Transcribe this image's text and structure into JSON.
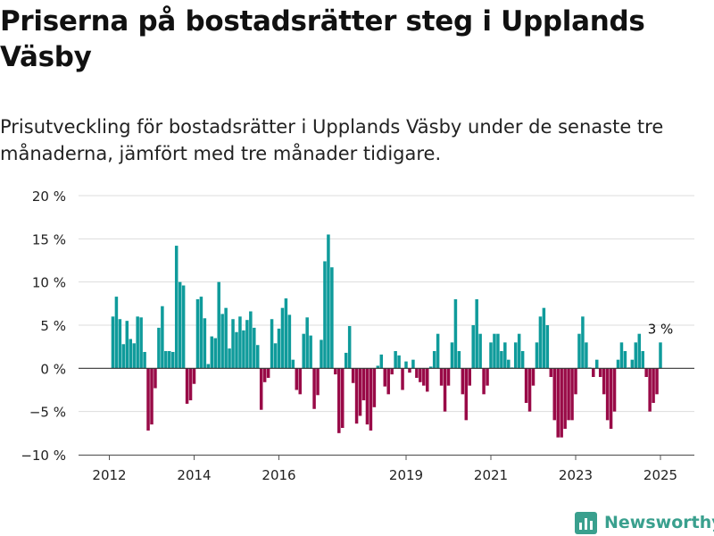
{
  "title": "Priserna på bostadsrätter steg i Upplands Väsby",
  "subtitle": "Prisutveckling för bostadsrätter i Upplands Väsby under de senaste tre månaderna, jämfört med tre månader tidigare.",
  "brand": {
    "name": "Newsworthy",
    "icon": "bar-chart-logo-icon"
  },
  "colors": {
    "positive": "#0f9b9b",
    "negative": "#990a47",
    "grid": "#dddddd",
    "zero_line": "#333333",
    "text": "#222222"
  },
  "chart_data": {
    "type": "bar",
    "x_axis": "date",
    "x_ticks": [
      2012,
      2014,
      2016,
      2019,
      2021,
      2023,
      2025
    ],
    "ylim": [
      -10,
      20
    ],
    "y_ticks": [
      -10,
      -5,
      0,
      5,
      10,
      15,
      20
    ],
    "y_tick_labels": [
      "−10 %",
      "−5 %",
      "0 %",
      "5 %",
      "10 %",
      "15 %",
      "20 %"
    ],
    "grid": true,
    "legend": "none",
    "annotation": {
      "text": "3 %",
      "target": "last"
    },
    "points": [
      {
        "x": "2012-02",
        "y": 6.0
      },
      {
        "x": "2012-03",
        "y": 8.3
      },
      {
        "x": "2012-04",
        "y": 5.7
      },
      {
        "x": "2012-05",
        "y": 2.8
      },
      {
        "x": "2012-06",
        "y": 5.5
      },
      {
        "x": "2012-07",
        "y": 3.4
      },
      {
        "x": "2012-08",
        "y": 2.9
      },
      {
        "x": "2012-09",
        "y": 6.0
      },
      {
        "x": "2012-10",
        "y": 5.9
      },
      {
        "x": "2012-11",
        "y": 1.9
      },
      {
        "x": "2012-12",
        "y": -7.2
      },
      {
        "x": "2013-01",
        "y": -6.5
      },
      {
        "x": "2013-02",
        "y": -2.3
      },
      {
        "x": "2013-03",
        "y": 4.7
      },
      {
        "x": "2013-04",
        "y": 7.2
      },
      {
        "x": "2013-05",
        "y": 2.0
      },
      {
        "x": "2013-06",
        "y": 2.0
      },
      {
        "x": "2013-07",
        "y": 1.9
      },
      {
        "x": "2013-08",
        "y": 14.2
      },
      {
        "x": "2013-09",
        "y": 10.0
      },
      {
        "x": "2013-10",
        "y": 9.6
      },
      {
        "x": "2013-11",
        "y": -4.1
      },
      {
        "x": "2013-12",
        "y": -3.7
      },
      {
        "x": "2014-01",
        "y": -1.8
      },
      {
        "x": "2014-02",
        "y": 8.0
      },
      {
        "x": "2014-03",
        "y": 8.3
      },
      {
        "x": "2014-04",
        "y": 5.8
      },
      {
        "x": "2014-05",
        "y": 0.5
      },
      {
        "x": "2014-06",
        "y": 3.7
      },
      {
        "x": "2014-07",
        "y": 3.5
      },
      {
        "x": "2014-08",
        "y": 10.0
      },
      {
        "x": "2014-09",
        "y": 6.3
      },
      {
        "x": "2014-10",
        "y": 7.0
      },
      {
        "x": "2014-11",
        "y": 2.3
      },
      {
        "x": "2014-12",
        "y": 5.7
      },
      {
        "x": "2015-01",
        "y": 4.2
      },
      {
        "x": "2015-02",
        "y": 6.0
      },
      {
        "x": "2015-03",
        "y": 4.4
      },
      {
        "x": "2015-04",
        "y": 5.6
      },
      {
        "x": "2015-05",
        "y": 6.6
      },
      {
        "x": "2015-06",
        "y": 4.7
      },
      {
        "x": "2015-07",
        "y": 2.7
      },
      {
        "x": "2015-08",
        "y": -4.8
      },
      {
        "x": "2015-09",
        "y": -1.6
      },
      {
        "x": "2015-10",
        "y": -1.1
      },
      {
        "x": "2015-11",
        "y": 5.7
      },
      {
        "x": "2015-12",
        "y": 2.9
      },
      {
        "x": "2016-01",
        "y": 4.6
      },
      {
        "x": "2016-02",
        "y": 7.0
      },
      {
        "x": "2016-03",
        "y": 8.1
      },
      {
        "x": "2016-04",
        "y": 6.2
      },
      {
        "x": "2016-05",
        "y": 1.0
      },
      {
        "x": "2016-06",
        "y": -2.5
      },
      {
        "x": "2016-07",
        "y": -3.0
      },
      {
        "x": "2016-08",
        "y": 4.0
      },
      {
        "x": "2016-09",
        "y": 5.9
      },
      {
        "x": "2016-10",
        "y": 3.8
      },
      {
        "x": "2016-11",
        "y": -4.7
      },
      {
        "x": "2016-12",
        "y": -3.1
      },
      {
        "x": "2017-01",
        "y": 3.3
      },
      {
        "x": "2017-02",
        "y": 12.4
      },
      {
        "x": "2017-03",
        "y": 15.5
      },
      {
        "x": "2017-04",
        "y": 11.7
      },
      {
        "x": "2017-05",
        "y": -0.7
      },
      {
        "x": "2017-06",
        "y": -7.5
      },
      {
        "x": "2017-07",
        "y": -6.9
      },
      {
        "x": "2017-08",
        "y": 1.8
      },
      {
        "x": "2017-09",
        "y": 4.9
      },
      {
        "x": "2017-10",
        "y": -1.7
      },
      {
        "x": "2017-11",
        "y": -6.4
      },
      {
        "x": "2017-12",
        "y": -5.5
      },
      {
        "x": "2018-01",
        "y": -3.7
      },
      {
        "x": "2018-02",
        "y": -6.5
      },
      {
        "x": "2018-03",
        "y": -7.2
      },
      {
        "x": "2018-04",
        "y": -4.5
      },
      {
        "x": "2018-05",
        "y": 0.3
      },
      {
        "x": "2018-06",
        "y": 1.6
      },
      {
        "x": "2018-07",
        "y": -2.1
      },
      {
        "x": "2018-08",
        "y": -3.0
      },
      {
        "x": "2018-09",
        "y": -0.7
      },
      {
        "x": "2018-10",
        "y": 2.0
      },
      {
        "x": "2018-11",
        "y": 1.5
      },
      {
        "x": "2018-12",
        "y": -2.5
      },
      {
        "x": "2019-01",
        "y": 0.8
      },
      {
        "x": "2019-02",
        "y": -0.5
      },
      {
        "x": "2019-03",
        "y": 1.0
      },
      {
        "x": "2019-04",
        "y": -1.1
      },
      {
        "x": "2019-05",
        "y": -1.6
      },
      {
        "x": "2019-06",
        "y": -2.0
      },
      {
        "x": "2019-07",
        "y": -2.7
      },
      {
        "x": "2019-08",
        "y": 0.2
      },
      {
        "x": "2019-09",
        "y": 2.0
      },
      {
        "x": "2019-10",
        "y": 4.0
      },
      {
        "x": "2019-11",
        "y": -2.0
      },
      {
        "x": "2019-12",
        "y": -5.0
      },
      {
        "x": "2020-01",
        "y": -2.0
      },
      {
        "x": "2020-02",
        "y": 3.0
      },
      {
        "x": "2020-03",
        "y": 8.0
      },
      {
        "x": "2020-04",
        "y": 2.0
      },
      {
        "x": "2020-05",
        "y": -3.0
      },
      {
        "x": "2020-06",
        "y": -6.0
      },
      {
        "x": "2020-07",
        "y": -2.0
      },
      {
        "x": "2020-08",
        "y": 5.0
      },
      {
        "x": "2020-09",
        "y": 8.0
      },
      {
        "x": "2020-10",
        "y": 4.0
      },
      {
        "x": "2020-11",
        "y": -3.0
      },
      {
        "x": "2020-12",
        "y": -2.0
      },
      {
        "x": "2021-01",
        "y": 3.0
      },
      {
        "x": "2021-02",
        "y": 4.0
      },
      {
        "x": "2021-03",
        "y": 4.0
      },
      {
        "x": "2021-04",
        "y": 2.0
      },
      {
        "x": "2021-05",
        "y": 3.0
      },
      {
        "x": "2021-06",
        "y": 1.0
      },
      {
        "x": "2021-07",
        "y": 0.1
      },
      {
        "x": "2021-08",
        "y": 3.0
      },
      {
        "x": "2021-09",
        "y": 4.0
      },
      {
        "x": "2021-10",
        "y": 2.0
      },
      {
        "x": "2021-11",
        "y": -4.0
      },
      {
        "x": "2021-12",
        "y": -5.0
      },
      {
        "x": "2022-01",
        "y": -2.0
      },
      {
        "x": "2022-02",
        "y": 3.0
      },
      {
        "x": "2022-03",
        "y": 6.0
      },
      {
        "x": "2022-04",
        "y": 7.0
      },
      {
        "x": "2022-05",
        "y": 5.0
      },
      {
        "x": "2022-06",
        "y": -1.0
      },
      {
        "x": "2022-07",
        "y": -6.0
      },
      {
        "x": "2022-08",
        "y": -8.0
      },
      {
        "x": "2022-09",
        "y": -8.0
      },
      {
        "x": "2022-10",
        "y": -7.0
      },
      {
        "x": "2022-11",
        "y": -6.0
      },
      {
        "x": "2022-12",
        "y": -6.0
      },
      {
        "x": "2023-01",
        "y": -3.0
      },
      {
        "x": "2023-02",
        "y": 4.0
      },
      {
        "x": "2023-03",
        "y": 6.0
      },
      {
        "x": "2023-04",
        "y": 3.0
      },
      {
        "x": "2023-05",
        "y": 0.1
      },
      {
        "x": "2023-06",
        "y": -1.0
      },
      {
        "x": "2023-07",
        "y": 1.0
      },
      {
        "x": "2023-08",
        "y": -1.0
      },
      {
        "x": "2023-09",
        "y": -3.0
      },
      {
        "x": "2023-10",
        "y": -6.0
      },
      {
        "x": "2023-11",
        "y": -7.0
      },
      {
        "x": "2023-12",
        "y": -5.0
      },
      {
        "x": "2024-01",
        "y": 1.0
      },
      {
        "x": "2024-02",
        "y": 3.0
      },
      {
        "x": "2024-03",
        "y": 2.0
      },
      {
        "x": "2024-04",
        "y": 0.1
      },
      {
        "x": "2024-05",
        "y": 1.0
      },
      {
        "x": "2024-06",
        "y": 3.0
      },
      {
        "x": "2024-07",
        "y": 4.0
      },
      {
        "x": "2024-08",
        "y": 2.0
      },
      {
        "x": "2024-09",
        "y": -1.0
      },
      {
        "x": "2024-10",
        "y": -5.0
      },
      {
        "x": "2024-11",
        "y": -4.0
      },
      {
        "x": "2024-12",
        "y": -3.0
      },
      {
        "x": "2025-01",
        "y": 3.0
      }
    ]
  }
}
